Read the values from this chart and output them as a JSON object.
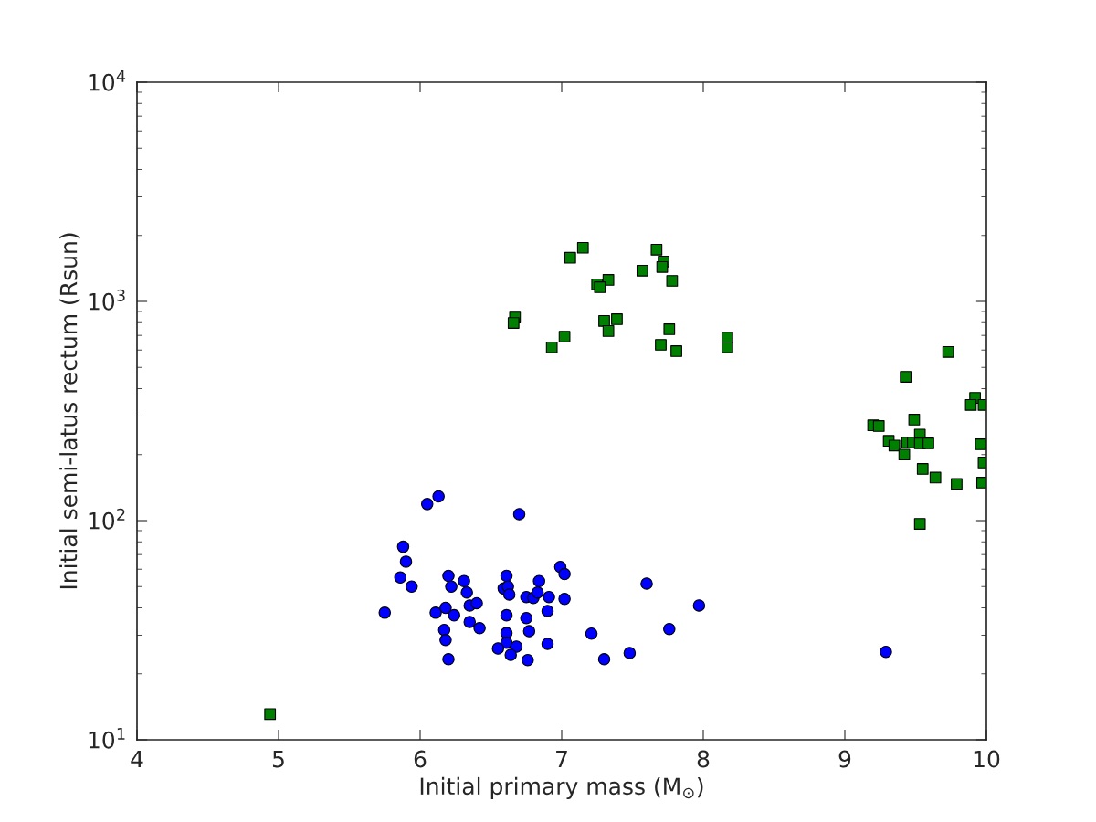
{
  "chart_data": {
    "type": "scatter",
    "xlabel": "Initial primary mass (M$_{⊙}$)",
    "ylabel": "Initial semi-latus rectum (Rsun)",
    "log": "y",
    "grid": false,
    "legend": false,
    "xlim": [
      4,
      10
    ],
    "xticks": [
      4,
      5,
      6,
      7,
      8,
      9,
      10
    ],
    "ylim": [
      10,
      10000
    ],
    "yticks": [
      {
        "value": 10,
        "label": "10$^{1}$"
      },
      {
        "value": 100,
        "label": "10$^{2}$"
      },
      {
        "value": 1000,
        "label": "10$^{3}$"
      },
      {
        "value": 10000,
        "label": "10$^{4}$"
      }
    ],
    "series": [
      {
        "color": "#0000ff",
        "marker": "circle",
        "x": [
          5.75,
          6.05,
          6.13,
          6.7,
          5.88,
          5.9,
          5.86,
          5.94,
          6.2,
          6.22,
          6.31,
          6.33,
          6.35,
          6.4,
          6.11,
          6.18,
          6.24,
          6.35,
          6.42,
          6.17,
          6.18,
          6.2,
          6.61,
          6.59,
          6.62,
          6.63,
          6.61,
          6.61,
          6.61,
          6.55,
          6.68,
          6.64,
          6.76,
          6.75,
          6.77,
          6.75,
          6.8,
          6.83,
          6.84,
          6.91,
          6.9,
          6.9,
          6.99,
          7.02,
          7.02,
          7.21,
          7.3,
          7.48,
          7.6,
          7.76,
          7.97,
          9.29
        ],
        "values": [
          38,
          119,
          129,
          107,
          76,
          65,
          55,
          50,
          56,
          50,
          53,
          47,
          41,
          42,
          38,
          40,
          37,
          34.5,
          32.3,
          31.7,
          28.5,
          23.3,
          56,
          49,
          50,
          46,
          37,
          30.7,
          27.7,
          26.1,
          26.6,
          24.4,
          23.1,
          35.9,
          31.3,
          44.8,
          44.4,
          47,
          53,
          44.8,
          38.7,
          27.4,
          61.5,
          57,
          43.9,
          30.5,
          23.3,
          24.9,
          51.6,
          32,
          41,
          25.2
        ]
      },
      {
        "color": "#008000",
        "marker": "square",
        "x": [
          7.15,
          7.06,
          7.67,
          7.72,
          7.71,
          7.57,
          7.33,
          7.25,
          7.27,
          7.78,
          6.67,
          6.66,
          7.39,
          7.3,
          7.33,
          7.02,
          6.93,
          7.76,
          7.7,
          7.81,
          8.17,
          8.17,
          9.73,
          9.43,
          9.92,
          9.89,
          9.98,
          9.2,
          9.24,
          9.49,
          9.53,
          9.31,
          9.35,
          9.42,
          9.44,
          9.48,
          9.53,
          9.59,
          9.96,
          9.55,
          9.64,
          9.79,
          9.98,
          9.97,
          9.53,
          4.94
        ],
        "values": [
          1757,
          1582,
          1722,
          1521,
          1436,
          1381,
          1254,
          1196,
          1161,
          1241,
          845,
          798,
          830,
          815,
          733,
          691,
          617,
          747,
          634,
          593,
          685,
          617,
          588,
          453,
          363,
          337,
          337,
          272,
          270,
          289,
          247,
          231,
          220,
          200,
          227,
          227,
          225,
          225,
          223,
          172,
          157,
          147,
          184,
          149,
          96.6,
          13.1
        ]
      }
    ]
  }
}
